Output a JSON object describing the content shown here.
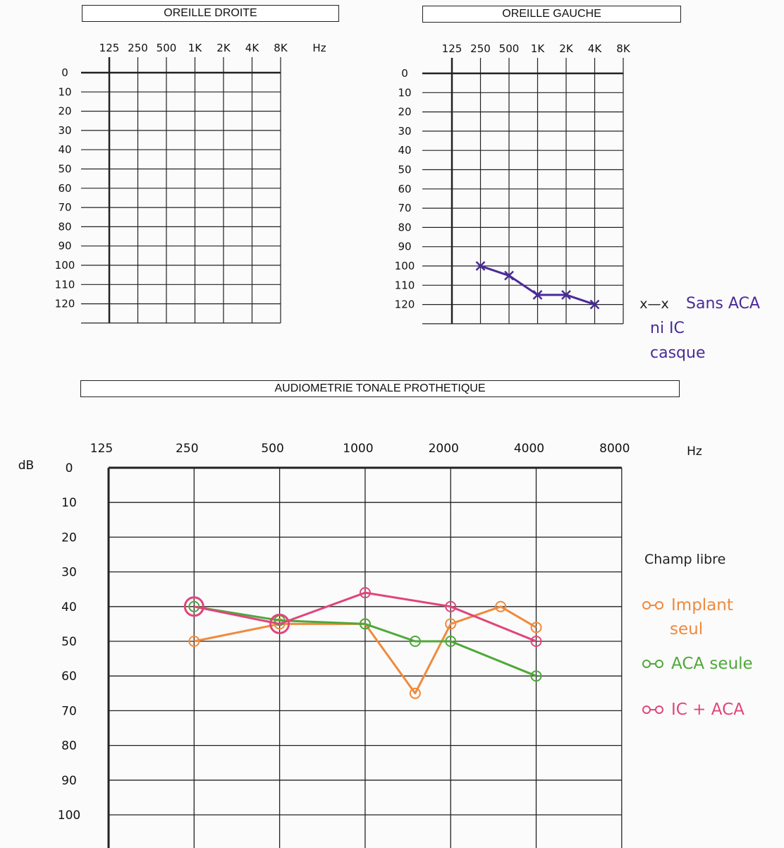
{
  "titles": {
    "right_ear": "OREILLE DROITE",
    "left_ear": "OREILLE GAUCHE",
    "prosthetic": "AUDIOMETRIE TONALE PROTHETIQUE"
  },
  "chart_data": [
    {
      "id": "oreille-droite",
      "type": "line",
      "title": "OREILLE DROITE",
      "x_tick_labels": [
        "125",
        "250",
        "500",
        "1K",
        "2K",
        "4K",
        "8K"
      ],
      "x_unit": "Hz",
      "y_tick_labels": [
        "0",
        "10",
        "20",
        "30",
        "40",
        "50",
        "60",
        "70",
        "80",
        "90",
        "100",
        "110",
        "120"
      ],
      "ylim": [
        0,
        130
      ],
      "y_inverted": true,
      "series": []
    },
    {
      "id": "oreille-gauche",
      "type": "line",
      "title": "OREILLE GAUCHE",
      "x_tick_labels": [
        "125",
        "250",
        "500",
        "1K",
        "2K",
        "4K",
        "8K"
      ],
      "y_tick_labels": [
        "0",
        "10",
        "20",
        "30",
        "40",
        "50",
        "60",
        "70",
        "80",
        "90",
        "100",
        "110",
        "120"
      ],
      "ylim": [
        0,
        130
      ],
      "y_inverted": true,
      "series": [
        {
          "name": "Sans ACA ni IC casque",
          "marker": "x",
          "color": "#4a2a9a",
          "x": [
            250,
            500,
            1000,
            2000,
            4000
          ],
          "values": [
            100,
            105,
            115,
            115,
            120
          ]
        }
      ],
      "legend": {
        "symbol": "x—x",
        "lines": [
          "Sans ACA",
          "ni IC",
          "casque"
        ],
        "color": "#4a2a9a"
      }
    },
    {
      "id": "audiometrie-tonale-prothetique",
      "type": "line",
      "title": "AUDIOMETRIE TONALE PROTHETIQUE",
      "y_unit_label": "dB",
      "x_unit": "Hz",
      "x_tick_labels": [
        "125",
        "250",
        "500",
        "1000",
        "2000",
        "4000",
        "8000"
      ],
      "y_tick_labels": [
        "0",
        "10",
        "20",
        "30",
        "40",
        "50",
        "60",
        "70",
        "80",
        "90",
        "100"
      ],
      "ylim": [
        0,
        110
      ],
      "y_inverted": true,
      "legend_title": "Champ libre",
      "series": [
        {
          "name": "Implant seul",
          "legend_lines": [
            "Implant",
            "seul"
          ],
          "marker": "o",
          "color": "#f08a3c",
          "x": [
            250,
            500,
            1000,
            1500,
            2000,
            3000,
            4000
          ],
          "values": [
            50,
            45,
            45,
            65,
            45,
            40,
            46
          ]
        },
        {
          "name": "ACA seule",
          "legend_lines": [
            "ACA seule"
          ],
          "marker": "o",
          "color": "#4fa83a",
          "x": [
            250,
            500,
            1000,
            1500,
            2000,
            4000
          ],
          "values": [
            40,
            44,
            45,
            50,
            50,
            60
          ]
        },
        {
          "name": "IC + ACA",
          "legend_lines": [
            "IC + ACA"
          ],
          "marker": "o",
          "color": "#e0457b",
          "x": [
            250,
            500,
            1000,
            2000,
            4000
          ],
          "values": [
            40,
            45,
            36,
            40,
            50
          ]
        }
      ]
    }
  ]
}
